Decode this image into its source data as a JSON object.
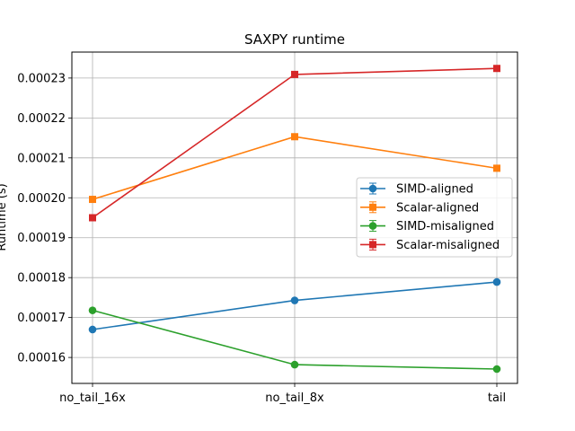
{
  "chart_data": {
    "type": "line",
    "title": "SAXPY runtime",
    "xlabel": "",
    "ylabel": "Runtime (s)",
    "categories": [
      "no_tail_16x",
      "no_tail_8x",
      "tail"
    ],
    "ylim": [
      0.0001535,
      0.0002365
    ],
    "yticks": [
      0.00016,
      0.00017,
      0.00018,
      0.00019,
      0.0002,
      0.00021,
      0.00022,
      0.00023
    ],
    "ytick_labels": [
      "0.00016",
      "0.00017",
      "0.00018",
      "0.00019",
      "0.00020",
      "0.00021",
      "0.00022",
      "0.00023"
    ],
    "grid": true,
    "legend_position": "center-right",
    "series": [
      {
        "name": "SIMD-aligned",
        "values": [
          0.000167,
          0.0001743,
          0.0001789
        ],
        "color": "#1f77b4",
        "marker": "circle"
      },
      {
        "name": "Scalar-aligned",
        "values": [
          0.0001996,
          0.0002153,
          0.0002074
        ],
        "color": "#ff7f0e",
        "marker": "square"
      },
      {
        "name": "SIMD-misaligned",
        "values": [
          0.0001718,
          0.0001582,
          0.0001571
        ],
        "color": "#2ca02c",
        "marker": "circle"
      },
      {
        "name": "Scalar-misaligned",
        "values": [
          0.000195,
          0.0002309,
          0.0002324
        ],
        "color": "#d62728",
        "marker": "square"
      }
    ]
  }
}
